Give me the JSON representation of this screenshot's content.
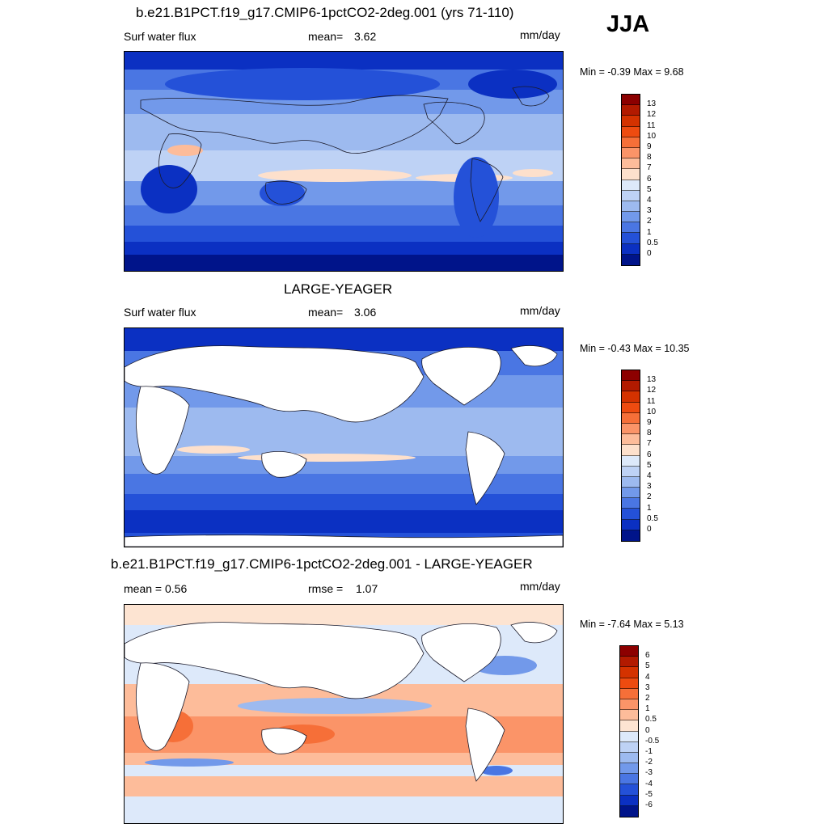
{
  "season": "JJA",
  "panels": [
    {
      "title": "b.e21.B1PCT.f19_g17.CMIP6-1pctCO2-2deg.001 (yrs 71-110)",
      "left_label": "Surf water flux",
      "stat_label": "mean=",
      "stat_value": "3.62",
      "units": "mm/day",
      "minmax": "Min =  -0.39 Max =   9.68",
      "land_masked": false
    },
    {
      "title": "LARGE-YEAGER",
      "left_label": "Surf water flux",
      "stat_label": "mean=",
      "stat_value": "3.06",
      "units": "mm/day",
      "minmax": "Min =  -0.43 Max =  10.35",
      "land_masked": true
    },
    {
      "title": "b.e21.B1PCT.f19_g17.CMIP6-1pctCO2-2deg.001 - LARGE-YEAGER",
      "left_label": "mean =   0.56",
      "stat_label": "rmse =",
      "stat_value": "1.07",
      "units": "mm/day",
      "minmax": "Min =  -7.64 Max =    5.13",
      "land_masked": true
    }
  ],
  "colorbars": {
    "field": {
      "labels": [
        "13",
        "12",
        "11",
        "10",
        "9",
        "8",
        "7",
        "6",
        "5",
        "4",
        "3",
        "2",
        "1",
        "0.5",
        "0"
      ],
      "colors": [
        "#8c0000",
        "#b21a00",
        "#d43200",
        "#ee4b10",
        "#f66f38",
        "#fb9468",
        "#fdbc9a",
        "#fde0cc",
        "#dde9fa",
        "#bed2f5",
        "#9dbaef",
        "#7299ea",
        "#4a76e3",
        "#2451d8",
        "#0b30c2",
        "#00148a"
      ]
    },
    "diff": {
      "labels": [
        "6",
        "5",
        "4",
        "3",
        "2",
        "1",
        "0.5",
        "0",
        "-0.5",
        "-1",
        "-2",
        "-3",
        "-4",
        "-5",
        "-6"
      ],
      "colors": [
        "#8c0000",
        "#b21a00",
        "#d43200",
        "#ee4b10",
        "#f66f38",
        "#fb9468",
        "#fdbc9a",
        "#fde4d2",
        "#dde9fa",
        "#bed2f5",
        "#9dbaef",
        "#7299ea",
        "#4a76e3",
        "#2451d8",
        "#0b30c2",
        "#00148a"
      ]
    }
  }
}
